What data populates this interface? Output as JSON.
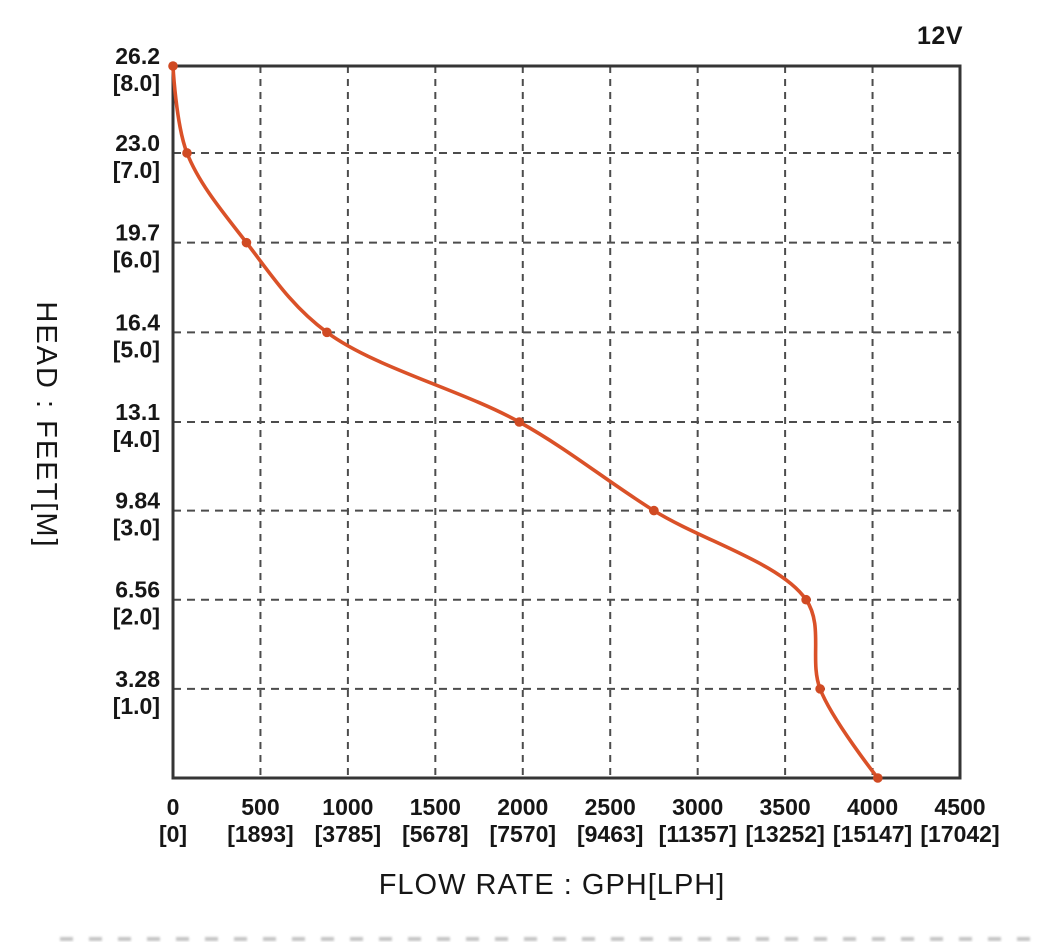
{
  "chart_data": {
    "type": "line",
    "xlabel": "FLOW RATE : GPH[LPH]",
    "ylabel": "HEAD : FEET[M]",
    "xlim": [
      0,
      4500
    ],
    "ylim": [
      0,
      26.2
    ],
    "grid": "dashed",
    "legend": "none",
    "annotations": [
      {
        "text": "12V",
        "position": "top-right"
      }
    ],
    "x_ticks": {
      "values": [
        0,
        500,
        1000,
        1500,
        2000,
        2500,
        3000,
        3500,
        4000,
        4500
      ],
      "gph_labels": [
        "0",
        "500",
        "1000",
        "1500",
        "2000",
        "2500",
        "3000",
        "3500",
        "4000",
        "4500"
      ],
      "lph_labels": [
        "[0]",
        "[1893]",
        "[3785]",
        "[5678]",
        "[7570]",
        "[9463]",
        "[11357]",
        "[13252]",
        "[15147]",
        "[17042]"
      ]
    },
    "y_ticks": {
      "values": [
        26.2,
        23.0,
        19.7,
        16.4,
        13.1,
        9.84,
        6.56,
        3.28
      ],
      "feet_labels": [
        "26.2",
        "23.0",
        "19.7",
        "16.4",
        "13.1",
        "9.84",
        "6.56",
        "3.28"
      ],
      "m_labels": [
        "[8.0]",
        "[7.0]",
        "[6.0]",
        "[5.0]",
        "[4.0]",
        "[3.0]",
        "[2.0]",
        "[1.0]"
      ]
    },
    "series": [
      {
        "name": "12V",
        "x_gph": [
          0,
          80,
          420,
          880,
          1980,
          2750,
          3620,
          3700,
          4030
        ],
        "y_feet": [
          26.2,
          23.0,
          19.7,
          16.4,
          13.1,
          9.84,
          6.56,
          3.28,
          0
        ],
        "y_m": [
          8.0,
          7.0,
          6.0,
          5.0,
          4.0,
          3.0,
          2.0,
          1.0,
          0.0
        ]
      }
    ],
    "colors": {
      "curve": "#da5128",
      "marker": "#d04a23",
      "grid": "#4c4c4c",
      "frame": "#353535",
      "text": "#161616",
      "background": "#ffffff"
    }
  }
}
